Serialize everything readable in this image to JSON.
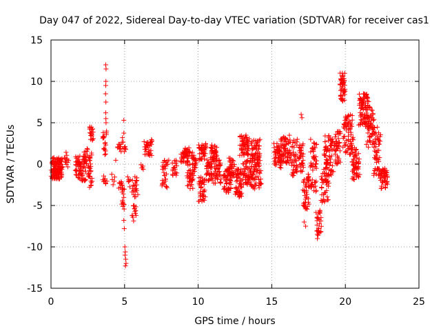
{
  "chart_data": {
    "type": "scatter",
    "title": "Day 047 of 2022, Sidereal Day-to-day VTEC variation (SDTVAR) for receiver cas1",
    "xlabel": "GPS time / hours",
    "ylabel": "SDTVAR / TECUs",
    "xlim": [
      0,
      25
    ],
    "ylim": [
      -15,
      15
    ],
    "xticks": [
      0,
      5,
      10,
      15,
      20,
      25
    ],
    "yticks": [
      -15,
      -10,
      -5,
      0,
      5,
      10,
      15
    ],
    "grid": true,
    "marker": "+",
    "color": "#ff0000",
    "series": [
      {
        "name": "SDTVAR",
        "clusters": [
          {
            "x": [
              0.0,
              0.8
            ],
            "y": [
              -1.8,
              0.8
            ],
            "n": 140
          },
          {
            "x": [
              0.9,
              1.2
            ],
            "y": [
              -0.5,
              1.8
            ],
            "n": 12
          },
          {
            "x": [
              1.6,
              2.4
            ],
            "y": [
              -2.0,
              1.0
            ],
            "n": 70
          },
          {
            "x": [
              2.2,
              2.5
            ],
            "y": [
              -1.0,
              2.0
            ],
            "n": 18
          },
          {
            "x": [
              2.5,
              2.8
            ],
            "y": [
              -2.8,
              2.0
            ],
            "n": 30
          },
          {
            "x": [
              2.6,
              2.9
            ],
            "y": [
              2.8,
              4.6
            ],
            "n": 18
          },
          {
            "x": [
              3.5,
              3.8
            ],
            "y": [
              1.0,
              4.0
            ],
            "n": 18
          },
          {
            "x": [
              3.5,
              3.8
            ],
            "y": [
              -2.5,
              -1.2
            ],
            "n": 8
          },
          {
            "x": [
              4.1,
              4.4
            ],
            "y": [
              -2.5,
              0.5
            ],
            "n": 6
          },
          {
            "x": [
              4.5,
              4.8
            ],
            "y": [
              1.5,
              2.5
            ],
            "n": 10
          },
          {
            "x": [
              4.6,
              4.9
            ],
            "y": [
              -3.0,
              -2.0
            ],
            "n": 10
          },
          {
            "x": [
              4.8,
              5.1
            ],
            "y": [
              1.0,
              4.5
            ],
            "n": 10
          },
          {
            "x": [
              4.8,
              5.0
            ],
            "y": [
              -5.5,
              -3.0
            ],
            "n": 14
          },
          {
            "x": [
              5.2,
              5.4
            ],
            "y": [
              -3.0,
              -1.5
            ],
            "n": 6
          },
          {
            "x": [
              5.5,
              5.9
            ],
            "y": [
              -4.0,
              -1.5
            ],
            "n": 22
          },
          {
            "x": [
              5.5,
              5.8
            ],
            "y": [
              -7.0,
              -5.0
            ],
            "n": 14
          },
          {
            "x": [
              6.1,
              6.3
            ],
            "y": [
              -1.0,
              0.0
            ],
            "n": 5
          },
          {
            "x": [
              6.3,
              6.9
            ],
            "y": [
              1.0,
              3.0
            ],
            "n": 35
          },
          {
            "x": [
              7.5,
              7.9
            ],
            "y": [
              -3.0,
              0.0
            ],
            "n": 22
          },
          {
            "x": [
              7.6,
              8.0
            ],
            "y": [
              -0.5,
              0.5
            ],
            "n": 8
          },
          {
            "x": [
              8.2,
              8.6
            ],
            "y": [
              -1.5,
              0.5
            ],
            "n": 18
          },
          {
            "x": [
              8.8,
              9.3
            ],
            "y": [
              0.0,
              1.5
            ],
            "n": 25
          },
          {
            "x": [
              9.0,
              9.4
            ],
            "y": [
              1.0,
              2.0
            ],
            "n": 12
          },
          {
            "x": [
              9.2,
              9.7
            ],
            "y": [
              -3.0,
              1.5
            ],
            "n": 45
          },
          {
            "x": [
              9.6,
              9.9
            ],
            "y": [
              -1.0,
              1.5
            ],
            "n": 20
          },
          {
            "x": [
              10.0,
              10.5
            ],
            "y": [
              -4.5,
              -1.5
            ],
            "n": 40
          },
          {
            "x": [
              10.0,
              10.6
            ],
            "y": [
              0.5,
              2.5
            ],
            "n": 40
          },
          {
            "x": [
              10.5,
              11.0
            ],
            "y": [
              -2.0,
              0.5
            ],
            "n": 40
          },
          {
            "x": [
              10.8,
              11.3
            ],
            "y": [
              0.5,
              2.5
            ],
            "n": 35
          },
          {
            "x": [
              11.0,
              11.6
            ],
            "y": [
              -2.5,
              0.5
            ],
            "n": 45
          },
          {
            "x": [
              11.7,
              12.3
            ],
            "y": [
              -3.5,
              -0.5
            ],
            "n": 50
          },
          {
            "x": [
              12.0,
              12.5
            ],
            "y": [
              -1.5,
              0.8
            ],
            "n": 30
          },
          {
            "x": [
              12.5,
              13.0
            ],
            "y": [
              -4.0,
              -0.5
            ],
            "n": 50
          },
          {
            "x": [
              12.8,
              13.5
            ],
            "y": [
              1.0,
              3.5
            ],
            "n": 60
          },
          {
            "x": [
              13.0,
              13.6
            ],
            "y": [
              -2.5,
              0.5
            ],
            "n": 50
          },
          {
            "x": [
              13.5,
              14.3
            ],
            "y": [
              -3.0,
              3.0
            ],
            "n": 110
          },
          {
            "x": [
              15.1,
              15.7
            ],
            "y": [
              -0.5,
              2.5
            ],
            "n": 45
          },
          {
            "x": [
              15.5,
              16.3
            ],
            "y": [
              0.0,
              3.5
            ],
            "n": 70
          },
          {
            "x": [
              16.3,
              16.8
            ],
            "y": [
              -1.5,
              3.0
            ],
            "n": 40
          },
          {
            "x": [
              16.8,
              17.2
            ],
            "y": [
              -1.0,
              2.5
            ],
            "n": 30
          },
          {
            "x": [
              17.1,
              17.6
            ],
            "y": [
              -5.5,
              -1.0
            ],
            "n": 45
          },
          {
            "x": [
              17.6,
              18.1
            ],
            "y": [
              -3.5,
              3.0
            ],
            "n": 50
          },
          {
            "x": [
              18.0,
              18.4
            ],
            "y": [
              -8.5,
              -5.5
            ],
            "n": 25
          },
          {
            "x": [
              18.3,
              18.9
            ],
            "y": [
              -5.0,
              -1.0
            ],
            "n": 40
          },
          {
            "x": [
              18.5,
              19.2
            ],
            "y": [
              -1.5,
              3.5
            ],
            "n": 70
          },
          {
            "x": [
              19.2,
              19.7
            ],
            "y": [
              0.0,
              4.0
            ],
            "n": 40
          },
          {
            "x": [
              19.6,
              20.0
            ],
            "y": [
              7.5,
              11.0
            ],
            "n": 50
          },
          {
            "x": [
              19.8,
              20.6
            ],
            "y": [
              1.0,
              6.0
            ],
            "n": 70
          },
          {
            "x": [
              20.4,
              21.0
            ],
            "y": [
              -2.0,
              2.0
            ],
            "n": 55
          },
          {
            "x": [
              20.9,
              21.6
            ],
            "y": [
              4.5,
              8.5
            ],
            "n": 80
          },
          {
            "x": [
              21.4,
              22.0
            ],
            "y": [
              2.0,
              7.0
            ],
            "n": 60
          },
          {
            "x": [
              21.9,
              22.4
            ],
            "y": [
              -1.5,
              4.5
            ],
            "n": 50
          },
          {
            "x": [
              22.3,
              22.9
            ],
            "y": [
              -3.0,
              -0.5
            ],
            "n": 50
          }
        ],
        "outliers": [
          [
            3.72,
            12.0
          ],
          [
            3.74,
            11.5
          ],
          [
            3.73,
            10.0
          ],
          [
            3.72,
            9.5
          ],
          [
            3.71,
            8.5
          ],
          [
            3.73,
            7.5
          ],
          [
            3.72,
            6.2
          ],
          [
            3.73,
            5.5
          ],
          [
            3.74,
            5.0
          ],
          [
            4.95,
            5.3
          ],
          [
            4.95,
            -6.8
          ],
          [
            4.98,
            -7.8
          ],
          [
            5.02,
            -10.0
          ],
          [
            5.05,
            -10.6
          ],
          [
            5.08,
            -11.5
          ],
          [
            5.1,
            -12.0
          ],
          [
            5.06,
            -12.3
          ],
          [
            5.03,
            -11.0
          ],
          [
            17.0,
            6.0
          ],
          [
            17.05,
            5.6
          ],
          [
            17.2,
            -7.0
          ],
          [
            17.3,
            -7.5
          ],
          [
            18.1,
            -9.0
          ],
          [
            18.15,
            -8.6
          ],
          [
            18.2,
            -8.3
          ]
        ]
      }
    ]
  }
}
